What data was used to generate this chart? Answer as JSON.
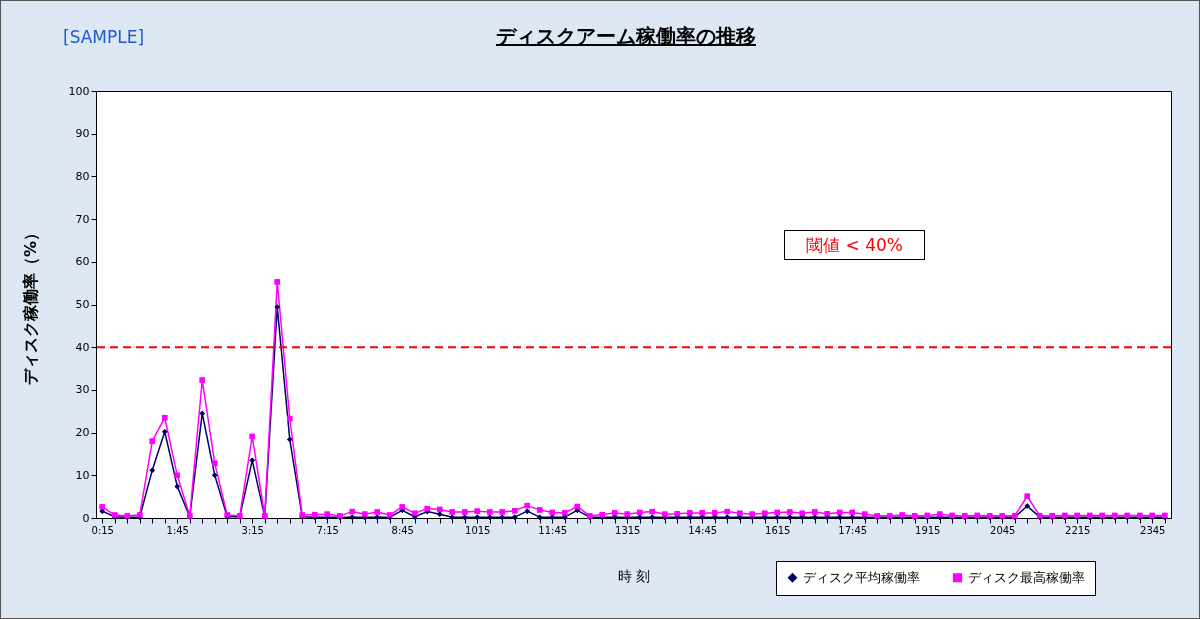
{
  "chart_data": {
    "type": "line",
    "title": "ディスクアーム稼働率の推移",
    "xlabel": "時 刻",
    "ylabel": "ディスク稼働率（%）",
    "annotations": [
      "[SAMPLE]"
    ],
    "categories": [
      "0:15",
      null,
      null,
      null,
      null,
      null,
      "1:45",
      null,
      null,
      null,
      null,
      null,
      "3:15",
      null,
      null,
      null,
      null,
      null,
      "7:15",
      null,
      null,
      null,
      null,
      null,
      "8:45",
      null,
      null,
      null,
      null,
      null,
      "1015",
      null,
      null,
      null,
      null,
      null,
      "11:45",
      null,
      null,
      null,
      null,
      null,
      "1315",
      null,
      null,
      null,
      null,
      null,
      "14:45",
      null,
      null,
      null,
      null,
      null,
      "1615",
      null,
      null,
      null,
      null,
      null,
      "17:45",
      null,
      null,
      null,
      null,
      null,
      "1915",
      null,
      null,
      null,
      null,
      null,
      "2045",
      null,
      null,
      null,
      null,
      null,
      "2215",
      null,
      null,
      null,
      null,
      null,
      "2345",
      null
    ],
    "series": [
      {
        "name": "ディスク平均稼働率",
        "color": "#000066",
        "marker": "diamond",
        "values": [
          1.6,
          0.3,
          0.2,
          0.2,
          11.2,
          20.2,
          7.4,
          0.3,
          24.5,
          10,
          0.3,
          0.3,
          13.5,
          0.3,
          49.4,
          18.4,
          0.3,
          0.2,
          0.2,
          0.2,
          0.2,
          0.2,
          0.2,
          0.2,
          1.8,
          0.3,
          1.5,
          0.9,
          0.2,
          0.2,
          0.2,
          0.2,
          0.2,
          0.2,
          1.6,
          0.2,
          0.2,
          0.2,
          1.8,
          0.2,
          0.2,
          0.2,
          0.2,
          0.2,
          0.2,
          0.2,
          0.2,
          0.2,
          0.2,
          0.2,
          0.2,
          0.2,
          0.2,
          0.2,
          0.2,
          0.2,
          0.2,
          0.2,
          0.2,
          0.2,
          0.2,
          0.2,
          0.2,
          0.2,
          0.2,
          0.2,
          0.2,
          0.2,
          0.2,
          0.2,
          0.2,
          0.2,
          0.2,
          0.2,
          2.8,
          0.2,
          0.2,
          0.2,
          0.2,
          0.2,
          0.2,
          0.2,
          0.2,
          0.2,
          0.2,
          0.2
        ]
      },
      {
        "name": "ディスク最高稼働率",
        "color": "#ff00ff",
        "marker": "square",
        "values": [
          2.6,
          0.7,
          0.5,
          0.7,
          18,
          23.5,
          10,
          0.5,
          32.3,
          12.8,
          0.7,
          0.5,
          19.1,
          0.5,
          55.3,
          23.3,
          0.7,
          0.8,
          0.9,
          0.5,
          1.5,
          0.9,
          1.4,
          0.7,
          2.6,
          1.1,
          2.2,
          2.0,
          1.4,
          1.4,
          1.6,
          1.4,
          1.4,
          1.7,
          2.9,
          1.9,
          1.3,
          1.2,
          2.7,
          0.5,
          0.8,
          1.2,
          0.9,
          1.3,
          1.5,
          0.9,
          1.0,
          1.2,
          1.2,
          1.2,
          1.5,
          1.1,
          0.9,
          1.1,
          1.3,
          1.4,
          1.1,
          1.4,
          1.0,
          1.3,
          1.3,
          0.9,
          0.5,
          0.5,
          0.7,
          0.5,
          0.6,
          0.9,
          0.6,
          0.5,
          0.6,
          0.5,
          0.5,
          0.5,
          5.1,
          0.5,
          0.5,
          0.6,
          0.6,
          0.6,
          0.6,
          0.6,
          0.6,
          0.6,
          0.6,
          0.6
        ]
      }
    ],
    "ylim": [
      0,
      100
    ],
    "yticks": [
      0,
      10,
      20,
      30,
      40,
      50,
      60,
      70,
      80,
      90,
      100
    ],
    "ref_lines": [
      {
        "axis": "y",
        "value": 40,
        "label": "閾値 < 40%",
        "color": "#ff0000",
        "line_style": "dashed"
      }
    ],
    "legend": "bottom right"
  }
}
